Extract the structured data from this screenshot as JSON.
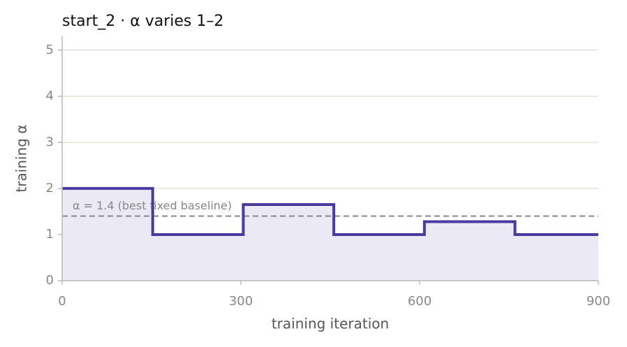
{
  "chart_data": {
    "type": "line",
    "step": "post",
    "title": "start_2   ·   α varies 1–2",
    "x_label": "training iteration",
    "y_label": "training α",
    "x": [
      0,
      152,
      304,
      456,
      608,
      760,
      900
    ],
    "series": [
      {
        "color": "#4a3aa0",
        "fill": "#ebe9f5",
        "values": [
          2,
          1,
          1.65,
          1,
          1.28,
          1,
          1
        ]
      }
    ],
    "baseline": {
      "value": 1.4,
      "label": "α = 1.4 (best fixed baseline)",
      "color": "#888888"
    },
    "xlim": [
      0,
      900
    ],
    "xticks": [
      0,
      300,
      600,
      900
    ],
    "ylim": [
      0,
      5.3
    ],
    "yticks": [
      0,
      1,
      2,
      3,
      4,
      5
    ],
    "grid": true
  }
}
